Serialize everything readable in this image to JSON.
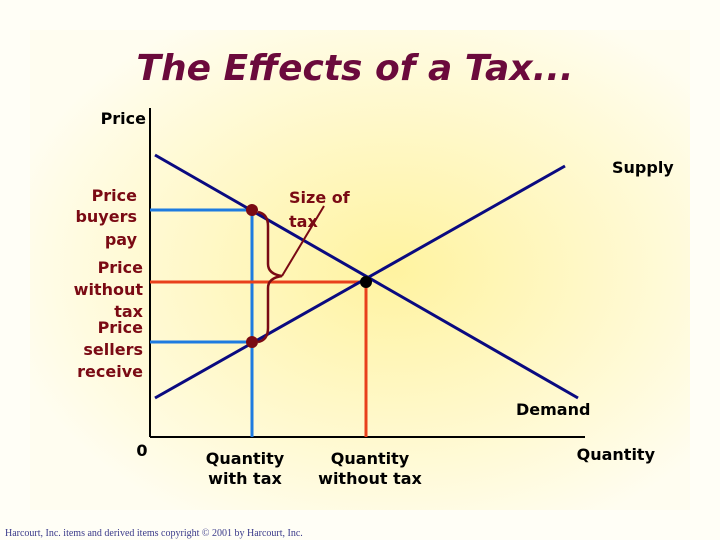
{
  "title": "The Effects of a Tax...",
  "axes": {
    "y_label": "Price",
    "x_label": "Quantity",
    "origin": "0"
  },
  "curves": {
    "supply": "Supply",
    "demand": "Demand"
  },
  "annotation": {
    "lines": [
      "Size of",
      "tax"
    ]
  },
  "price_labels": [
    {
      "lines": [
        "Price",
        "buyers",
        "pay"
      ]
    },
    {
      "lines": [
        "Price",
        "without",
        "tax"
      ]
    },
    {
      "lines": [
        "Price",
        "sellers",
        "receive"
      ]
    }
  ],
  "quantity_labels": [
    {
      "lines": [
        "Quantity",
        "with tax"
      ]
    },
    {
      "lines": [
        "Quantity",
        "without tax"
      ]
    }
  ],
  "footer": "Harcourt, Inc. items and derived items copyright © 2001 by Harcourt, Inc."
}
